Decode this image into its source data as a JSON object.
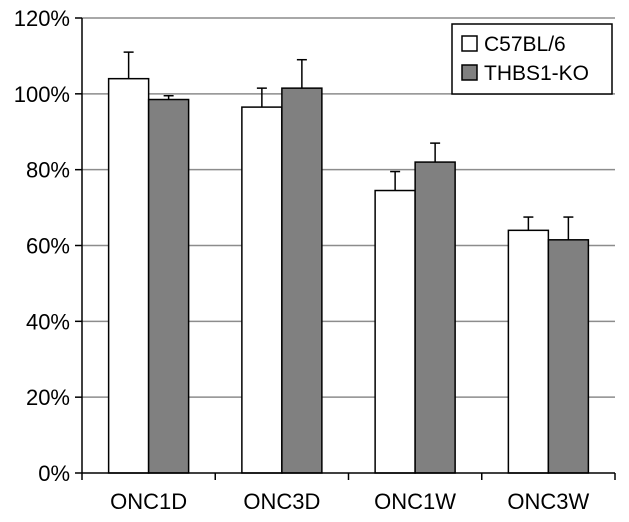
{
  "chart_data": {
    "type": "bar",
    "title": "",
    "xlabel": "",
    "ylabel": "",
    "categories": [
      "ONC1D",
      "ONC3D",
      "ONC1W",
      "ONC3W"
    ],
    "series": [
      {
        "name": "C57BL/6",
        "values": [
          104,
          96.5,
          74.5,
          64
        ],
        "errors": [
          7,
          5,
          5,
          3.5
        ],
        "color": "#ffffff"
      },
      {
        "name": "THBS1-KO",
        "values": [
          98.5,
          101.5,
          82,
          61.5
        ],
        "errors": [
          1,
          7.5,
          5,
          6
        ],
        "color": "#808080"
      }
    ],
    "ylim": [
      0,
      120
    ],
    "yticks": [
      0,
      20,
      40,
      60,
      80,
      100,
      120
    ],
    "ytick_labels": [
      "0%",
      "20%",
      "40%",
      "60%",
      "80%",
      "100%",
      "120%"
    ],
    "grid": true,
    "legend_position": "top-right"
  }
}
